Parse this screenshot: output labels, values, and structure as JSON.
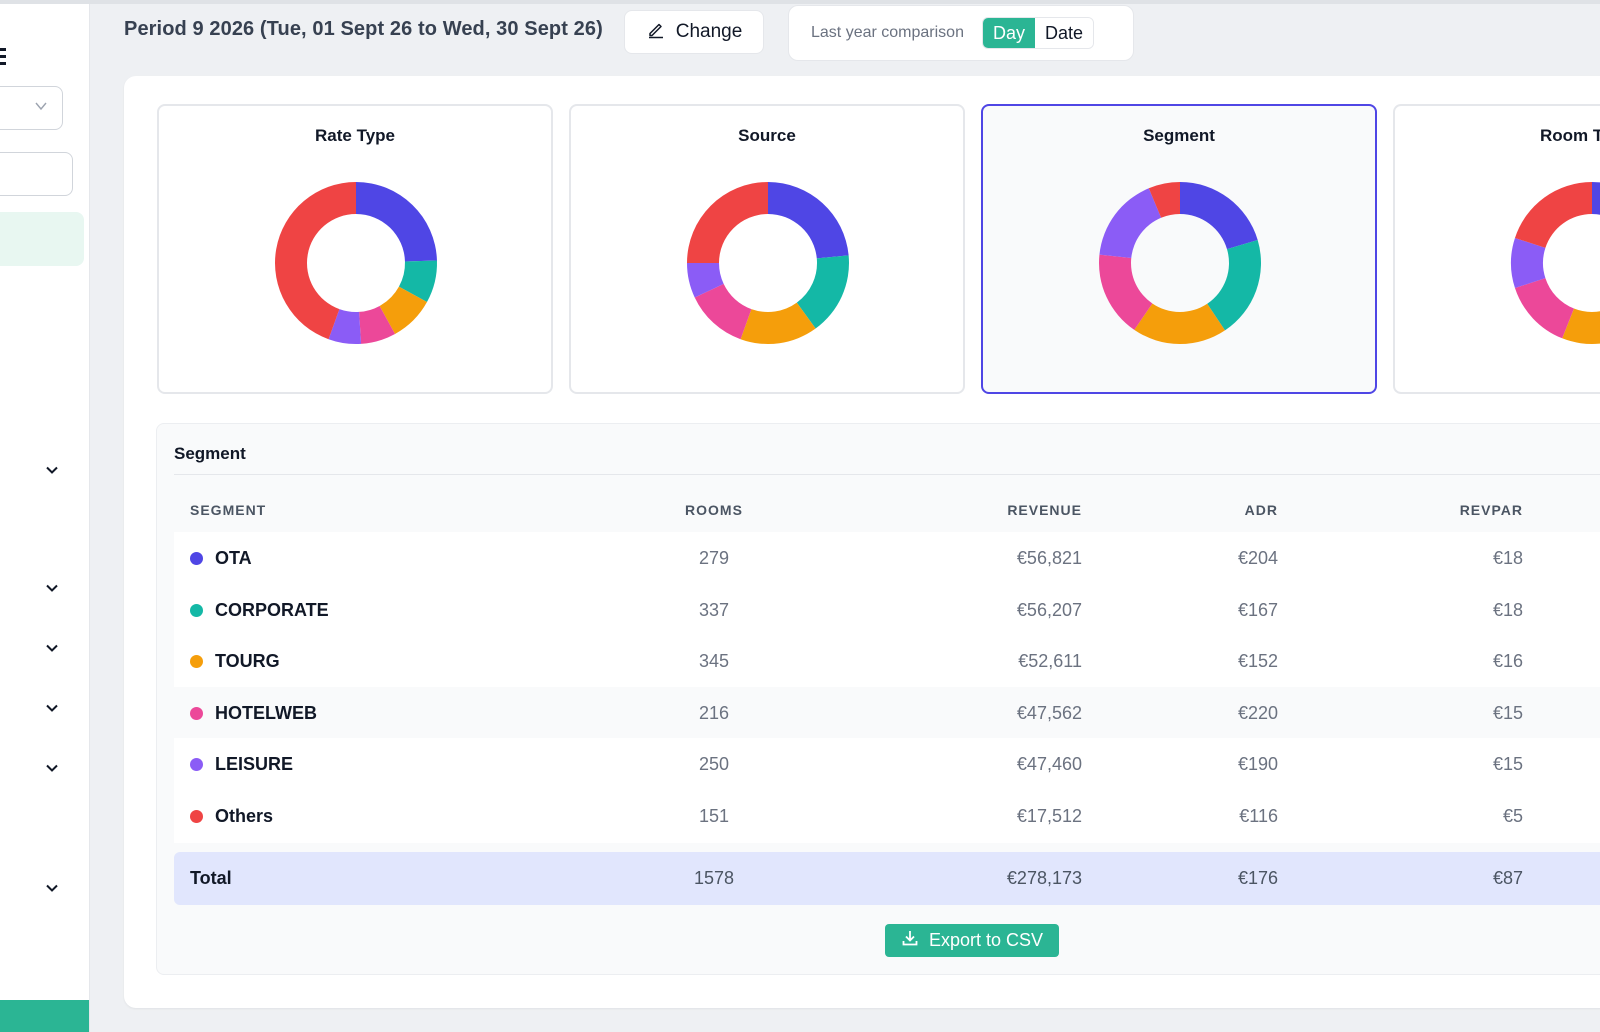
{
  "header": {
    "period_title": "Period 9 2026 (Tue, 01 Sept 26 to Wed, 30 Sept 26)",
    "change_label": "Change",
    "comparison_label": "Last year comparison",
    "toggle": {
      "day": "Day",
      "date": "Date",
      "selected": "Day"
    }
  },
  "charts": [
    {
      "title": "Rate Type",
      "selected": false,
      "chart_data": {
        "type": "pie",
        "categories": [
          "Blue",
          "Teal",
          "Orange",
          "Pink",
          "Purple",
          "Red"
        ],
        "values": [
          0.245,
          0.085,
          0.09,
          0.07,
          0.065,
          0.445
        ]
      }
    },
    {
      "title": "Source",
      "selected": false,
      "chart_data": {
        "type": "pie",
        "categories": [
          "Blue",
          "Teal",
          "Orange",
          "Pink",
          "Purple",
          "Red"
        ],
        "values": [
          0.235,
          0.165,
          0.155,
          0.125,
          0.07,
          0.25
        ]
      }
    },
    {
      "title": "Segment",
      "selected": true,
      "chart_data": {
        "type": "pie",
        "categories": [
          "OTA",
          "CORPORATE",
          "TOURG",
          "HOTELWEB",
          "LEISURE",
          "Others"
        ],
        "values": [
          56821,
          56207,
          52611,
          47562,
          47460,
          17512
        ]
      }
    },
    {
      "title": "Room T",
      "selected": false,
      "chart_data": {
        "type": "pie",
        "categories": [
          "Blue",
          "Teal",
          "Orange",
          "Pink",
          "Purple",
          "Red"
        ],
        "values": [
          0.25,
          0.16,
          0.15,
          0.14,
          0.1,
          0.2
        ]
      }
    }
  ],
  "colors": {
    "blue": "#4f46e5",
    "teal": "#14b8a6",
    "orange": "#f59e0b",
    "pink": "#ec4899",
    "purple": "#8b5cf6",
    "red": "#ef4444",
    "accent": "#2bb594"
  },
  "table": {
    "title": "Segment",
    "columns": {
      "segment": "SEGMENT",
      "rooms": "ROOMS",
      "revenue": "REVENUE",
      "adr": "ADR",
      "revpar": "REVPAR"
    },
    "rows": [
      {
        "name": "OTA",
        "color": "#4f46e5",
        "rooms": "279",
        "revenue": "€56,821",
        "adr": "€204",
        "revpar": "€18"
      },
      {
        "name": "CORPORATE",
        "color": "#14b8a6",
        "rooms": "337",
        "revenue": "€56,207",
        "adr": "€167",
        "revpar": "€18"
      },
      {
        "name": "TOURG",
        "color": "#f59e0b",
        "rooms": "345",
        "revenue": "€52,611",
        "adr": "€152",
        "revpar": "€16"
      },
      {
        "name": "HOTELWEB",
        "color": "#ec4899",
        "rooms": "216",
        "revenue": "€47,562",
        "adr": "€220",
        "revpar": "€15"
      },
      {
        "name": "LEISURE",
        "color": "#8b5cf6",
        "rooms": "250",
        "revenue": "€47,460",
        "adr": "€190",
        "revpar": "€15"
      },
      {
        "name": "Others",
        "color": "#ef4444",
        "rooms": "151",
        "revenue": "€17,512",
        "adr": "€116",
        "revpar": "€5"
      }
    ],
    "total": {
      "name": "Total",
      "rooms": "1578",
      "revenue": "€278,173",
      "adr": "€176",
      "revpar": "€87"
    }
  },
  "export_label": "Export to CSV",
  "icons": {
    "change": "pencil-icon",
    "export": "download-icon",
    "sidebar_menu": "menu-icon",
    "sidebar_expand": "chevron-down-icon"
  }
}
